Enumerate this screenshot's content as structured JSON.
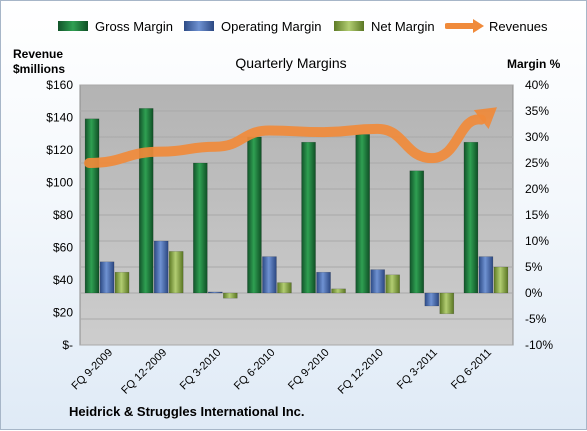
{
  "chart_data": {
    "type": "bar",
    "title": "Quarterly Margins",
    "company": "Heidrick & Struggles International Inc.",
    "categories": [
      "FQ 9-2009",
      "FQ 12-2009",
      "FQ 3-2010",
      "FQ 6-2010",
      "FQ 9-2010",
      "FQ 12-2010",
      "FQ 3-2011",
      "FQ 6-2011"
    ],
    "series": [
      {
        "name": "Gross Margin",
        "type": "bar",
        "axis": "right",
        "color": "#1e7a3c",
        "values": [
          33.5,
          35.5,
          25.0,
          30.0,
          29.0,
          30.5,
          23.5,
          29.0
        ]
      },
      {
        "name": "Operating Margin",
        "type": "bar",
        "axis": "right",
        "color": "#4a6fb5",
        "values": [
          6.0,
          10.0,
          0.2,
          7.0,
          4.0,
          4.5,
          -2.5,
          7.0
        ]
      },
      {
        "name": "Net Margin",
        "type": "bar",
        "axis": "right",
        "color": "#8aa84a",
        "values": [
          4.0,
          8.0,
          -1.0,
          2.0,
          0.8,
          3.5,
          -4.0,
          5.0
        ]
      },
      {
        "name": "Revenues",
        "type": "line",
        "axis": "left",
        "color": "#f08a3a",
        "values": [
          112,
          119,
          122,
          132,
          131,
          133,
          115,
          141
        ]
      }
    ],
    "y_left": {
      "label_line1": "Revenue",
      "label_line2": "$millions",
      "ylim": [
        0,
        160
      ],
      "ticks": [
        "$-",
        "$20",
        "$40",
        "$60",
        "$80",
        "$100",
        "$120",
        "$140",
        "$160"
      ]
    },
    "y_right": {
      "label": "Margin %",
      "ylim": [
        -10,
        40
      ],
      "ticks": [
        "-10%",
        "-5%",
        "0%",
        "5%",
        "10%",
        "15%",
        "20%",
        "25%",
        "30%",
        "35%",
        "40%"
      ]
    },
    "legend_position": "top",
    "grid": true,
    "plot_background": "#c0c0c0"
  }
}
